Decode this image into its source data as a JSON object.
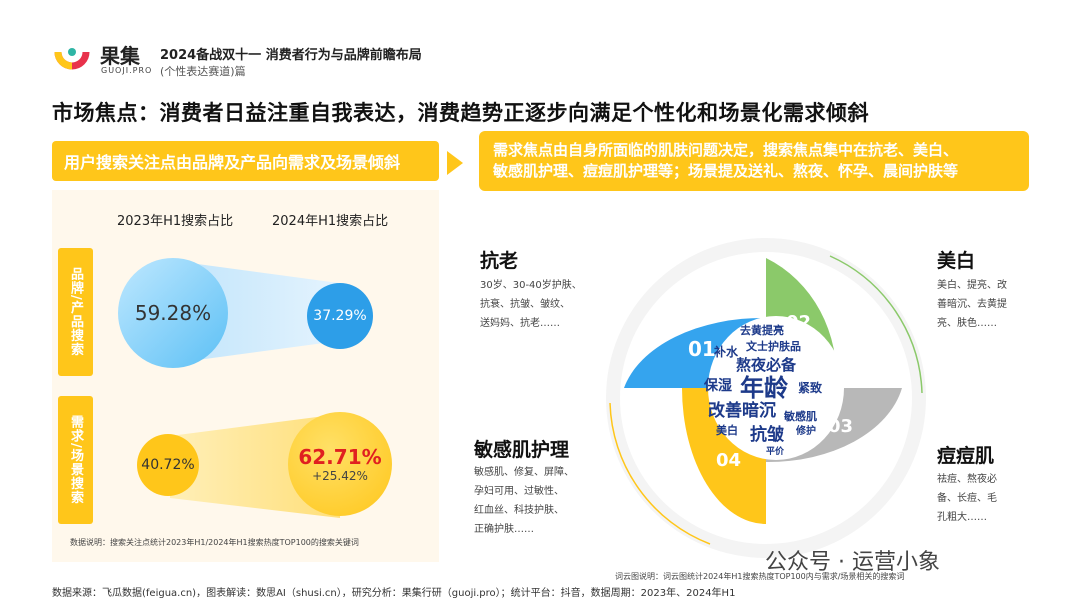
{
  "header": {
    "brand_cn": "果集",
    "brand_en": "GUOJI.PRO",
    "report_title": "2024备战双十一 消费者行为与品牌前瞻布局",
    "report_subtitle": "(个性表达赛道)篇"
  },
  "main_title": "市场焦点：消费者日益注重自我表达，消费趋势正逐步向满足个性化和场景化需求倾斜",
  "banner_left": "用户搜索关注点由品牌及产品向需求及场景倾斜",
  "banner_right": {
    "line1": "需求焦点由自身所面临的肌肤问题决定，搜索焦点集中在抗老、美白、",
    "line2": "敏感肌护理、痘痘肌护理等；场景提及送礼、熬夜、怀孕、晨间护肤等"
  },
  "left_panel": {
    "col_2023": "2023年H1搜索占比",
    "col_2024": "2024年H1搜索占比",
    "row1_label": "品牌/产品搜索",
    "row2_label": "需求/场景搜索",
    "brand_2023": "59.28%",
    "brand_2024": "37.29%",
    "need_2023": "40.72%",
    "need_2024": "62.71%",
    "need_change": "+25.42%",
    "note": "数据说明：搜索关注点统计2023年H1/2024年H1搜索热度TOP100的搜索关键词"
  },
  "categories": [
    {
      "title": "抗老",
      "num": "01",
      "desc": [
        "30岁、30-40岁护肤、",
        "抗衰、抗皱、皱纹、",
        "送妈妈、抗老……"
      ]
    },
    {
      "title": "美白",
      "num": "02",
      "desc": [
        "美白、提亮、改",
        "善暗沉、去黄提",
        "亮、肤色……"
      ]
    },
    {
      "title": "痘痘肌",
      "num": "03",
      "desc": [
        "祛痘、熬夜必",
        "备、长痘、毛",
        "孔粗大……"
      ]
    },
    {
      "title": "敏感肌护理",
      "num": "04",
      "desc": [
        "敏感肌、修复、屏障、",
        "孕妇可用、过敏性、",
        "红血丝、科技护肤、",
        "正确护肤……"
      ]
    }
  ],
  "word_cloud": [
    "去黄提亮",
    "文士护肤品",
    "补水",
    "熬夜必备",
    "保湿",
    "年龄",
    "紧致",
    "改善暗沉",
    "敏感肌",
    "美白",
    "抗皱",
    "修护",
    "平价"
  ],
  "word_cloud_note": "词云图说明：词云图统计2024年H1搜索热度TOP100内与需求/场景相关的搜索词",
  "watermark": "公众号 · 运营小象",
  "footer": "数据来源：飞瓜数据(feigua.cn)，图表解读：数思AI（shusi.cn），研究分析：果集行研（guoji.pro）；统计平台：抖音，数据周期：2023年、2024年H1",
  "colors": {
    "yellow": "#ffc61a",
    "green": "#8bc96a",
    "blue": "#35a4ee",
    "gray": "#b8b8b8",
    "red": "#e02020"
  }
}
